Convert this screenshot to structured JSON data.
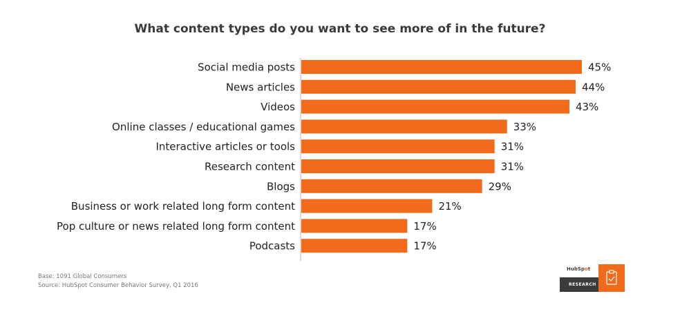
{
  "chart_data": {
    "type": "bar",
    "orientation": "horizontal",
    "title": "What content types do you want to see more of in the future?",
    "categories": [
      "Social media posts",
      "News articles",
      "Videos",
      "Online classes / educational games",
      "Interactive articles or tools",
      "Research content",
      "Blogs",
      "Business or work related long form content",
      "Pop culture or news related long form content",
      "Podcasts"
    ],
    "values": [
      45,
      44,
      43,
      33,
      31,
      31,
      29,
      21,
      17,
      17
    ],
    "value_labels": [
      "45%",
      "44%",
      "43%",
      "33%",
      "31%",
      "31%",
      "29%",
      "21%",
      "17%",
      "17%"
    ],
    "xlabel": "",
    "ylabel": "",
    "xlim": [
      0,
      45
    ],
    "bar_color": "#f26b1d",
    "grid": false,
    "legend": "none"
  },
  "footnote": {
    "base": "Base: 1091 Global Consumers",
    "source": "Source: HubSpot Consumer Behavior Survey, Q1 2016"
  },
  "logo": {
    "brand": "HubSpot",
    "label": "RESEARCH",
    "icon": "clipboard-icon"
  }
}
